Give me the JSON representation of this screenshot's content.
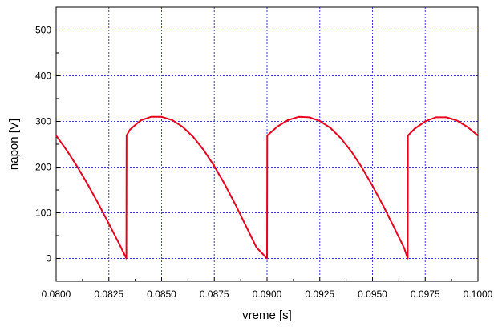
{
  "chart_data": {
    "type": "line",
    "title": "",
    "xlabel": "vreme [s]",
    "ylabel": "napon [V]",
    "xlim": [
      0.08,
      0.1
    ],
    "ylim": [
      -50,
      550
    ],
    "x_ticks": [
      "0.0800",
      "0.0825",
      "0.0850",
      "0.0875",
      "0.0900",
      "0.0925",
      "0.0950",
      "0.0975",
      "0.1000"
    ],
    "y_ticks": [
      "0",
      "100",
      "200",
      "300",
      "400",
      "500"
    ],
    "x_tick_values": [
      0.08,
      0.0825,
      0.085,
      0.0875,
      0.09,
      0.0925,
      0.095,
      0.0975,
      0.1
    ],
    "y_tick_values": [
      0,
      100,
      200,
      300,
      400,
      500
    ],
    "grid": true,
    "legend": "none",
    "series": [
      {
        "color": "#e8001c",
        "points": [
          [
            0.08,
            269
          ],
          [
            0.0805,
            237
          ],
          [
            0.081,
            201
          ],
          [
            0.0815,
            162
          ],
          [
            0.082,
            120
          ],
          [
            0.0825,
            76
          ],
          [
            0.083,
            31
          ],
          [
            0.08333,
            0
          ],
          [
            0.08334,
            269
          ],
          [
            0.0835,
            282
          ],
          [
            0.084,
            302
          ],
          [
            0.0845,
            310
          ],
          [
            0.085,
            310
          ],
          [
            0.0855,
            303
          ],
          [
            0.086,
            288
          ],
          [
            0.0865,
            266
          ],
          [
            0.087,
            237
          ],
          [
            0.0875,
            202
          ],
          [
            0.088,
            162
          ],
          [
            0.0885,
            118
          ],
          [
            0.089,
            71
          ],
          [
            0.0895,
            24
          ],
          [
            0.09,
            0
          ],
          [
            0.09001,
            269
          ],
          [
            0.0905,
            289
          ],
          [
            0.091,
            303
          ],
          [
            0.0915,
            310
          ],
          [
            0.092,
            309
          ],
          [
            0.0925,
            301
          ],
          [
            0.093,
            286
          ],
          [
            0.0935,
            263
          ],
          [
            0.094,
            234
          ],
          [
            0.0945,
            199
          ],
          [
            0.095,
            159
          ],
          [
            0.0955,
            116
          ],
          [
            0.096,
            70
          ],
          [
            0.0965,
            23
          ],
          [
            0.09667,
            0
          ],
          [
            0.09668,
            269
          ],
          [
            0.097,
            284
          ],
          [
            0.0975,
            300
          ],
          [
            0.098,
            309
          ],
          [
            0.0985,
            309
          ],
          [
            0.099,
            302
          ],
          [
            0.0995,
            288
          ],
          [
            0.1,
            269
          ]
        ]
      }
    ]
  },
  "colors": {
    "line": "#e8001c",
    "grid": "#3a3ad8",
    "axis": "#000000"
  }
}
